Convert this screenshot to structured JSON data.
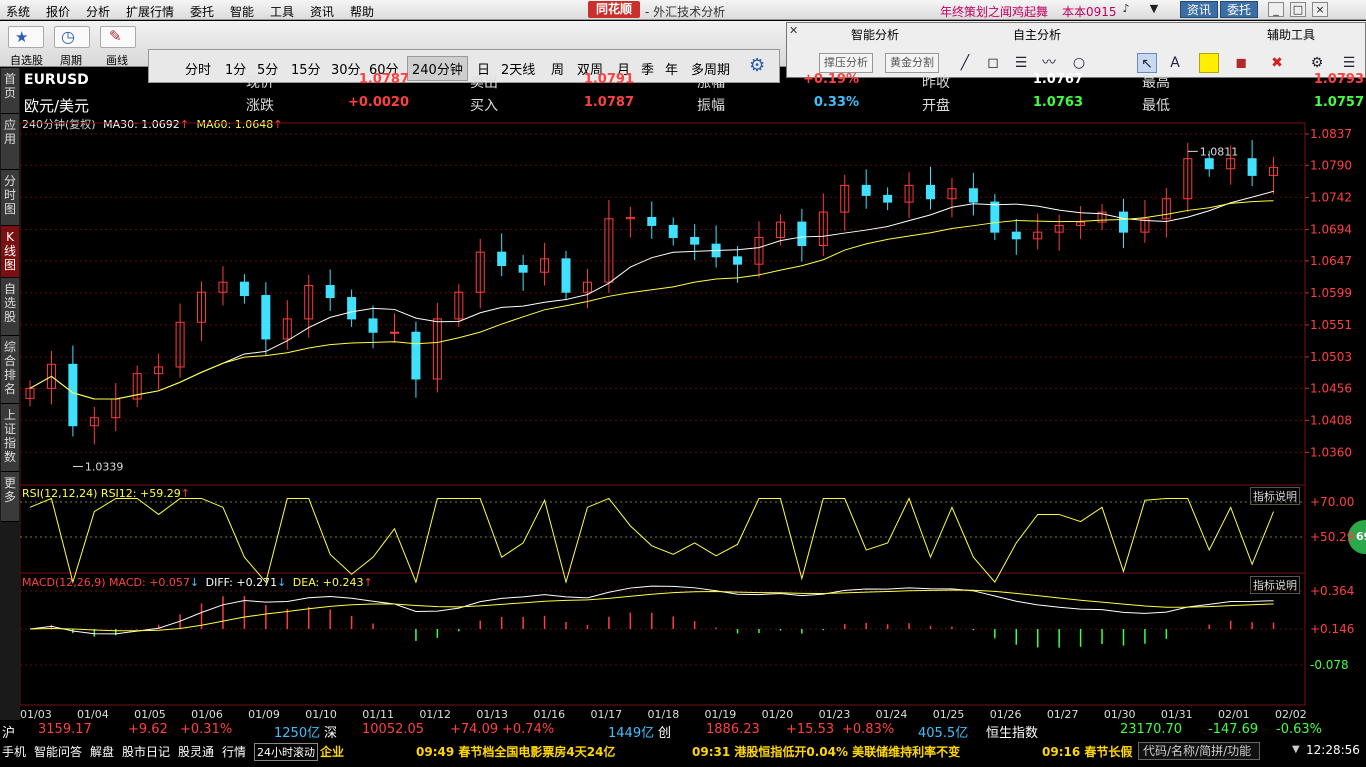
{
  "menubar": {
    "items": [
      "系统",
      "报价",
      "分析",
      "扩展行情",
      "委托",
      "智能",
      "工具",
      "资讯",
      "帮助"
    ],
    "logo": "同花顺",
    "app_title": "- 外汇技术分析",
    "promo": "年终策划之闻鸡起舞",
    "version": "本本0915",
    "news_btn": "资讯",
    "trade_btn": "委托"
  },
  "toolbar": {
    "buttons": [
      "自选股",
      "周期",
      "画线"
    ],
    "periods": [
      "分时",
      "1分",
      "5分",
      "15分",
      "30分",
      "60分",
      "240分钟",
      "日",
      "2天线",
      "周",
      "双周",
      "月",
      "季",
      "年",
      "多周期"
    ],
    "active_period": "240分钟"
  },
  "float_panel": {
    "headers": [
      "智能分析",
      "自主分析",
      "辅助工具"
    ],
    "buttons": [
      "撑压分析",
      "黄金分割"
    ]
  },
  "sidetabs": [
    "首页",
    "应用",
    "分时图",
    "K线图",
    "自选股",
    "综合排名",
    "上证指数",
    "更多"
  ],
  "quote": {
    "symbol": "EURUSD",
    "name": "欧元/美元",
    "rows": [
      [
        {
          "label": "现价",
          "value": "1.0787",
          "vcolor": "#ff4040"
        },
        {
          "label": "卖出",
          "value": "1.0791",
          "vcolor": "#ff4040"
        },
        {
          "label": "涨幅",
          "value": "+0.19%",
          "vcolor": "#ff4040"
        },
        {
          "label": "昨收",
          "value": "1.0767",
          "vcolor": "#ffffff"
        },
        {
          "label": "最高",
          "value": "1.0793",
          "vcolor": "#ff4040"
        }
      ],
      [
        {
          "label": "涨跌",
          "value": "+0.0020",
          "vcolor": "#ff4040"
        },
        {
          "label": "买入",
          "value": "1.0787",
          "vcolor": "#ff4040"
        },
        {
          "label": "振幅",
          "value": "0.33%",
          "vcolor": "#40c0ff"
        },
        {
          "label": "开盘",
          "value": "1.0763",
          "vcolor": "#40ff40"
        },
        {
          "label": "最低",
          "value": "1.0757",
          "vcolor": "#40ff40"
        }
      ]
    ]
  },
  "indicators": {
    "main_line": {
      "prefix": "240分钟(复权)",
      "ma30": "MA30: 1.0692",
      "ma60": "MA60: 1.0648"
    },
    "rsi_line": "RSI(12,12,24) RSI12: +59.29",
    "macd_line": {
      "macd": "MACD(12,26,9) MACD: +0.057",
      "diff": "DIFF: +0.271",
      "dea": "DEA: +0.243"
    },
    "explain": "指标说明",
    "rsi_badge": "69"
  },
  "chart_data": {
    "type": "candlestick",
    "price_axis": [
      "1.0837",
      "1.0790",
      "1.0742",
      "1.0694",
      "1.0647",
      "1.0599",
      "1.0551",
      "1.0503",
      "1.0456",
      "1.0408",
      "1.0360"
    ],
    "ylim": [
      1.0313,
      1.0837
    ],
    "rsi_axis": [
      "+70.00",
      "+50.29"
    ],
    "macd_axis": [
      "+0.364",
      "+0.146",
      "-0.078"
    ],
    "dates": [
      "01/03",
      "01/04",
      "01/05",
      "01/06",
      "01/09",
      "01/10",
      "01/11",
      "01/12",
      "01/13",
      "01/16",
      "01/17",
      "01/18",
      "01/19",
      "01/20",
      "01/23",
      "01/24",
      "01/25",
      "01/26",
      "01/27",
      "01/30",
      "01/31",
      "02/01",
      "02/02"
    ],
    "high_marker": "1.0811",
    "low_marker": "1.0339",
    "close_trend": [
      1.0456,
      1.0492,
      1.04,
      1.0412,
      1.044,
      1.0478,
      1.0488,
      1.0555,
      1.06,
      1.0615,
      1.0595,
      1.053,
      1.056,
      1.061,
      1.0592,
      1.056,
      1.054,
      1.054,
      1.047,
      1.056,
      1.06,
      1.066,
      1.064,
      1.063,
      1.065,
      1.06,
      1.0615,
      1.071,
      1.0712,
      1.07,
      1.0682,
      1.0672,
      1.0653,
      1.0642,
      1.0682,
      1.0705,
      1.067,
      1.072,
      1.076,
      1.0745,
      1.0735,
      1.076,
      1.074,
      1.0755,
      1.0735,
      1.069,
      1.068,
      1.069,
      1.07,
      1.0705,
      1.072,
      1.069,
      1.071,
      1.074,
      1.08,
      1.0785,
      1.08,
      1.0775,
      1.0787
    ]
  },
  "bottom": {
    "indices": [
      {
        "text": "沪",
        "color": "#ffffff"
      },
      {
        "text": "3159.17",
        "color": "#ff4040"
      },
      {
        "text": "+9.62",
        "color": "#ff4040"
      },
      {
        "text": "+0.31%",
        "color": "#ff4040"
      },
      {
        "text": "1250亿",
        "color": "#40c0ff"
      },
      {
        "text": "深",
        "color": "#ffffff"
      },
      {
        "text": "10052.05",
        "color": "#ff4040"
      },
      {
        "text": "+74.09",
        "color": "#ff4040"
      },
      {
        "text": "+0.74%",
        "color": "#ff4040"
      },
      {
        "text": "1449亿",
        "color": "#40c0ff"
      },
      {
        "text": "创",
        "color": "#ffffff"
      },
      {
        "text": "1886.23",
        "color": "#ff4040"
      },
      {
        "text": "+15.53",
        "color": "#ff4040"
      },
      {
        "text": "+0.83%",
        "color": "#ff4040"
      },
      {
        "text": "405.5亿",
        "color": "#40c0ff"
      },
      {
        "text": "恒生指数",
        "color": "#ffffff"
      },
      {
        "text": "23170.70",
        "color": "#40ff40"
      },
      {
        "text": "-147.69",
        "color": "#40ff40"
      },
      {
        "text": "-0.63%",
        "color": "#40ff40"
      }
    ],
    "nav": [
      "手机",
      "智能问答",
      "解盘",
      "股市日记",
      "股灵通",
      "行情",
      "24小时滚动"
    ],
    "news": [
      "企业",
      "09:49 春节档全国电影票房4天24亿",
      "09:31 港股恒指低开0.04% 美联储维持利率不变",
      "09:16 春节长假"
    ],
    "search_placeholder": "代码/名称/简拼/功能",
    "clock": "12:28:56"
  }
}
